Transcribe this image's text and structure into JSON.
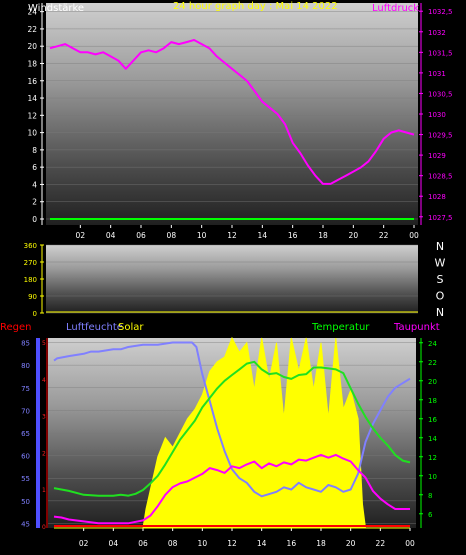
{
  "chart_data": [
    {
      "type": "line",
      "title": "24 hour graph day : Mai 14 2022",
      "left_axis": {
        "label": "Windstärke",
        "ticks": [
          0,
          2,
          4,
          6,
          8,
          10,
          12,
          14,
          16,
          18,
          20,
          22,
          24
        ],
        "ylim": [
          0,
          25
        ]
      },
      "right_axis": {
        "label": "Luftdruck",
        "ticks": [
          "1027,5",
          "1028",
          "1028,5",
          "1029",
          "1029,5",
          "1030",
          "1030,5",
          "1031",
          "1031,5",
          "1032",
          "1032,5"
        ],
        "ylim": [
          1027.3,
          1032.7
        ]
      },
      "x_ticks": [
        "02",
        "04",
        "06",
        "08",
        "10",
        "12",
        "14",
        "16",
        "18",
        "20",
        "22",
        "00"
      ],
      "series": [
        {
          "name": "Luftdruck",
          "color": "#ff00ff",
          "axis": "right",
          "x": [
            0,
            0.5,
            1,
            1.5,
            2,
            2.5,
            3,
            3.5,
            4,
            4.5,
            5,
            5.5,
            6,
            6.5,
            7,
            7.5,
            8,
            8.5,
            9,
            9.5,
            10,
            10.5,
            11,
            11.5,
            12,
            12.5,
            13,
            13.5,
            14,
            14.5,
            15,
            15.5,
            16,
            16.5,
            17,
            17.5,
            18,
            18.5,
            19,
            19.5,
            20,
            20.5,
            21,
            21.5,
            22,
            22.5,
            23,
            23.5,
            24
          ],
          "y": [
            1031.6,
            1031.65,
            1031.7,
            1031.6,
            1031.5,
            1031.5,
            1031.45,
            1031.5,
            1031.4,
            1031.3,
            1031.1,
            1031.3,
            1031.5,
            1031.55,
            1031.5,
            1031.6,
            1031.75,
            1031.7,
            1031.75,
            1031.8,
            1031.7,
            1031.6,
            1031.4,
            1031.25,
            1031.1,
            1030.95,
            1030.8,
            1030.55,
            1030.3,
            1030.15,
            1030.0,
            1029.75,
            1029.3,
            1029.05,
            1028.75,
            1028.5,
            1028.3,
            1028.3,
            1028.4,
            1028.5,
            1028.6,
            1028.7,
            1028.85,
            1029.1,
            1029.4,
            1029.55,
            1029.6,
            1029.55,
            1029.5
          ]
        },
        {
          "name": "Windstärke",
          "color": "#00ff00",
          "axis": "left",
          "x": [
            0,
            24
          ],
          "y": [
            0,
            0
          ]
        }
      ]
    },
    {
      "type": "line",
      "title": "",
      "left_axis": {
        "ticks": [
          0,
          90,
          180,
          270,
          360
        ],
        "ylim": [
          0,
          360
        ]
      },
      "x_ticks": [],
      "direction_labels": [
        "N",
        "W",
        "S",
        "O",
        "N"
      ],
      "series": []
    },
    {
      "type": "line",
      "title": "",
      "labels": {
        "regen": "Regen",
        "luftfeuchte": "Luftfeuchte",
        "solar": "Solar",
        "temperatur": "Temperatur",
        "taupunkt": "Taupunkt"
      },
      "left_axis": {
        "ticks": [
          45,
          50,
          55,
          60,
          65,
          70,
          75,
          80,
          85
        ],
        "ylim": [
          44,
          86
        ]
      },
      "regen_axis": {
        "ticks": [
          0,
          1,
          2,
          3,
          4,
          5
        ],
        "ylim": [
          0,
          5
        ]
      },
      "right_axis": {
        "ticks": [
          6,
          8,
          10,
          12,
          14,
          16,
          18,
          20,
          22,
          24
        ],
        "ylim": [
          4.5,
          24.5
        ]
      },
      "x_ticks": [
        "02",
        "04",
        "06",
        "08",
        "10",
        "12",
        "14",
        "16",
        "18",
        "20",
        "22",
        "00"
      ],
      "series": [
        {
          "name": "Luftfeuchte",
          "color": "#8080ff",
          "axis": "left",
          "x": [
            0,
            0.2,
            1,
            2,
            2.5,
            3,
            4,
            4.5,
            5,
            6,
            6.5,
            7,
            8,
            9,
            9.3,
            9.6,
            10,
            10.5,
            11,
            11.5,
            12,
            12.5,
            13,
            13.5,
            14,
            14.5,
            15,
            15.5,
            16,
            16.5,
            17,
            17.5,
            18,
            18.5,
            19,
            19.5,
            20,
            20.5,
            21,
            21.5,
            22,
            22.5,
            23,
            23.5,
            24
          ],
          "y": [
            81,
            81.5,
            82,
            82.5,
            83,
            83,
            83.5,
            83.5,
            84,
            84.5,
            84.5,
            84.5,
            85,
            85,
            85,
            84,
            78,
            72,
            66,
            61,
            57,
            55,
            54,
            52,
            51,
            51.5,
            52,
            53,
            52.5,
            54,
            53,
            52.5,
            52,
            53.5,
            53,
            52,
            52.5,
            56,
            63,
            67,
            70,
            73,
            75,
            76,
            77
          ]
        },
        {
          "name": "Temperatur",
          "color": "#20e020",
          "axis": "right",
          "x": [
            0,
            1,
            2,
            3,
            4,
            4.5,
            5,
            5.5,
            6,
            6.5,
            7,
            7.5,
            8,
            8.5,
            9,
            9.5,
            10,
            10.5,
            11,
            11.5,
            12,
            12.5,
            13,
            13.5,
            14,
            14.5,
            15,
            15.5,
            16,
            16.5,
            17,
            17.5,
            18,
            18.5,
            19,
            19.5,
            20,
            20.5,
            21,
            21.5,
            22,
            22.5,
            23,
            23.5,
            24
          ],
          "y": [
            8.7,
            8.4,
            8.0,
            7.9,
            7.9,
            8.0,
            7.9,
            8.1,
            8.5,
            9.2,
            10.0,
            11.2,
            12.5,
            13.8,
            14.8,
            15.8,
            17.2,
            18.2,
            19.2,
            20.0,
            20.6,
            21.2,
            21.8,
            22.0,
            21.2,
            20.7,
            20.8,
            20.4,
            20.2,
            20.6,
            20.7,
            21.4,
            21.4,
            21.3,
            21.2,
            20.8,
            19.2,
            17.6,
            16.2,
            15.0,
            14.0,
            13.2,
            12.2,
            11.6,
            11.4
          ]
        },
        {
          "name": "Taupunkt",
          "color": "#ff00ff",
          "axis": "right",
          "x": [
            0,
            0.5,
            1,
            2,
            3,
            4,
            5,
            6,
            6.5,
            7,
            7.5,
            8,
            8.5,
            9,
            9.5,
            10,
            10.5,
            11,
            11.5,
            12,
            12.5,
            13,
            13.5,
            14,
            14.5,
            15,
            15.5,
            16,
            16.5,
            17,
            17.5,
            18,
            18.5,
            19,
            19.5,
            20,
            20.5,
            21,
            21.5,
            22,
            22.5,
            23,
            23.5,
            24
          ],
          "y": [
            5.7,
            5.6,
            5.4,
            5.2,
            5.0,
            5.0,
            5.0,
            5.3,
            5.8,
            6.8,
            8.0,
            8.8,
            9.2,
            9.4,
            9.8,
            10.2,
            10.8,
            10.6,
            10.3,
            11.0,
            10.8,
            11.2,
            11.5,
            10.8,
            11.3,
            11.0,
            11.4,
            11.2,
            11.7,
            11.6,
            11.9,
            12.2,
            11.9,
            12.2,
            11.8,
            11.5,
            10.6,
            9.8,
            8.4,
            7.6,
            7.0,
            6.5,
            6.5,
            6.5
          ]
        },
        {
          "name": "Solar",
          "color": "#ffff00",
          "axis": "right",
          "x": [
            0,
            6,
            6.2,
            7,
            7.5,
            8,
            8.5,
            9,
            9.5,
            10,
            10.5,
            11,
            11.5,
            12,
            12.5,
            13,
            13.5,
            14,
            14.5,
            15,
            15.5,
            16,
            16.5,
            17,
            17.5,
            18,
            18.5,
            19,
            19.5,
            20,
            20.5,
            20.8,
            21,
            24
          ],
          "y": [
            4.5,
            4.5,
            6.5,
            12,
            14,
            13,
            14.5,
            16,
            17,
            18.5,
            21,
            22,
            22.5,
            24.5,
            23,
            24,
            19,
            24.5,
            20,
            24,
            16,
            24.5,
            21,
            24.5,
            19,
            24,
            16,
            24.5,
            17,
            19,
            16,
            7,
            4.5,
            4.5
          ]
        },
        {
          "name": "Regen",
          "color": "#ff0000",
          "axis": "regen",
          "x": [
            0,
            24
          ],
          "y": [
            0,
            0
          ]
        }
      ]
    }
  ]
}
